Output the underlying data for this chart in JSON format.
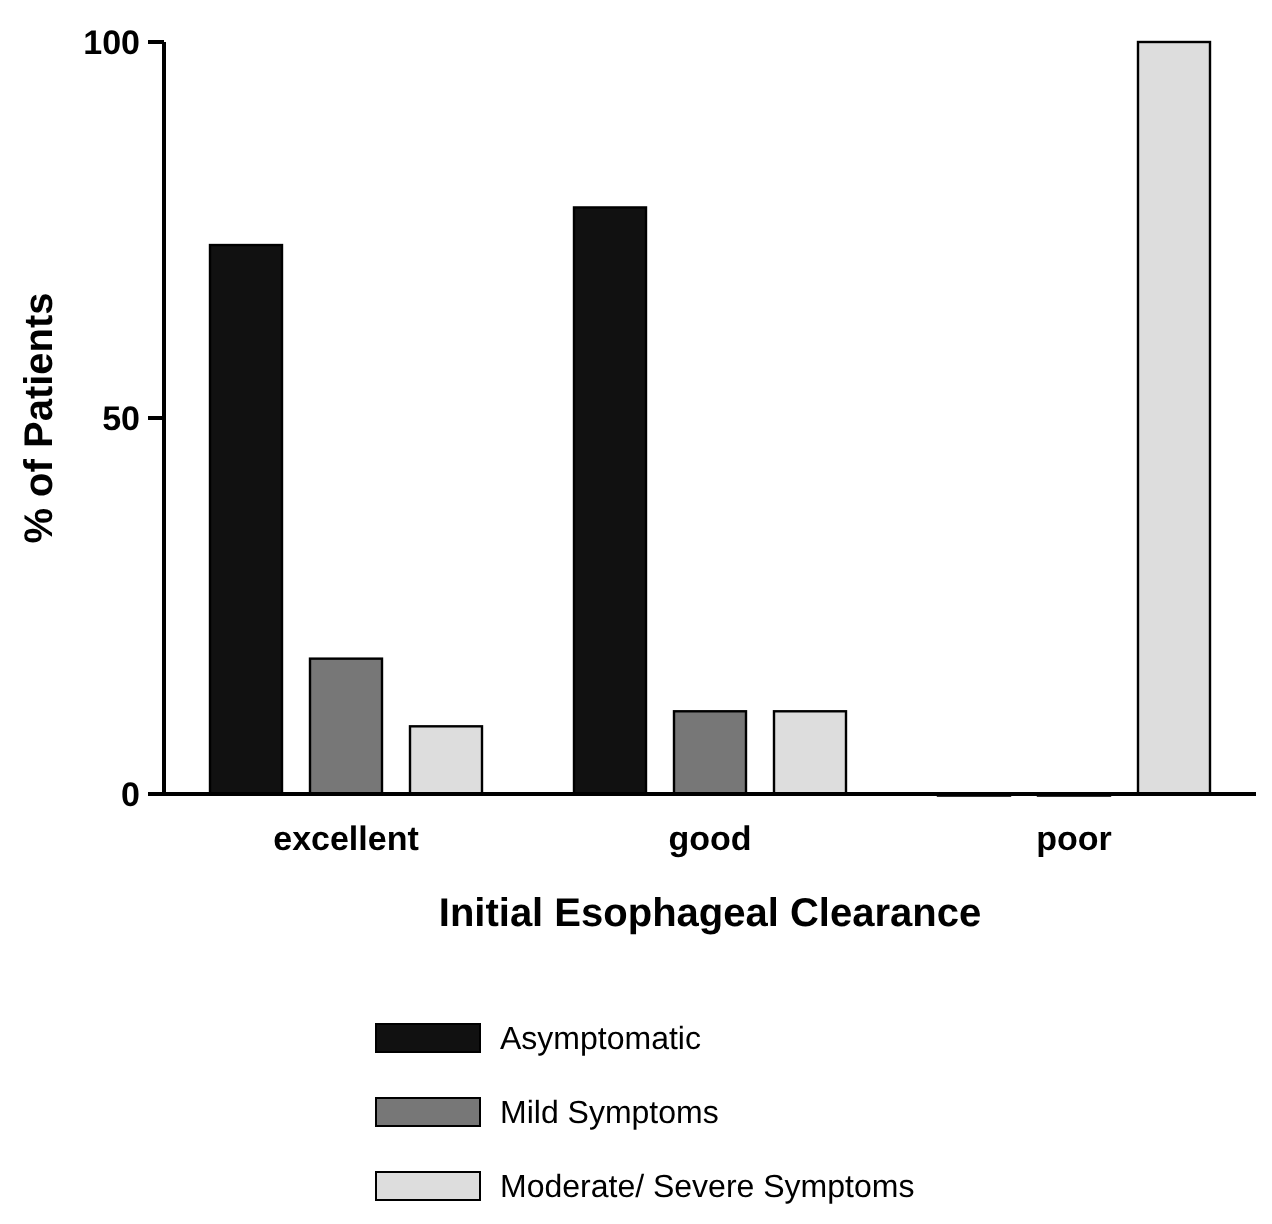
{
  "chart_data": {
    "type": "bar",
    "xlabel": "Initial Esophageal Clearance",
    "ylabel": "% of Patients",
    "categories": [
      "excellent",
      "good",
      "poor"
    ],
    "series": [
      {
        "name": "Asymptomatic",
        "color": "#111111",
        "values": [
          73,
          78,
          0
        ]
      },
      {
        "name": "Mild Symptoms",
        "color": "#777777",
        "values": [
          18,
          11,
          0
        ]
      },
      {
        "name": "Moderate/ Severe Symptoms",
        "color": "#dddddd",
        "values": [
          9,
          11,
          100
        ]
      }
    ],
    "ylim": [
      0,
      100
    ],
    "yticks": [
      0,
      50,
      100
    ],
    "grid": false,
    "legend": "bottom"
  }
}
